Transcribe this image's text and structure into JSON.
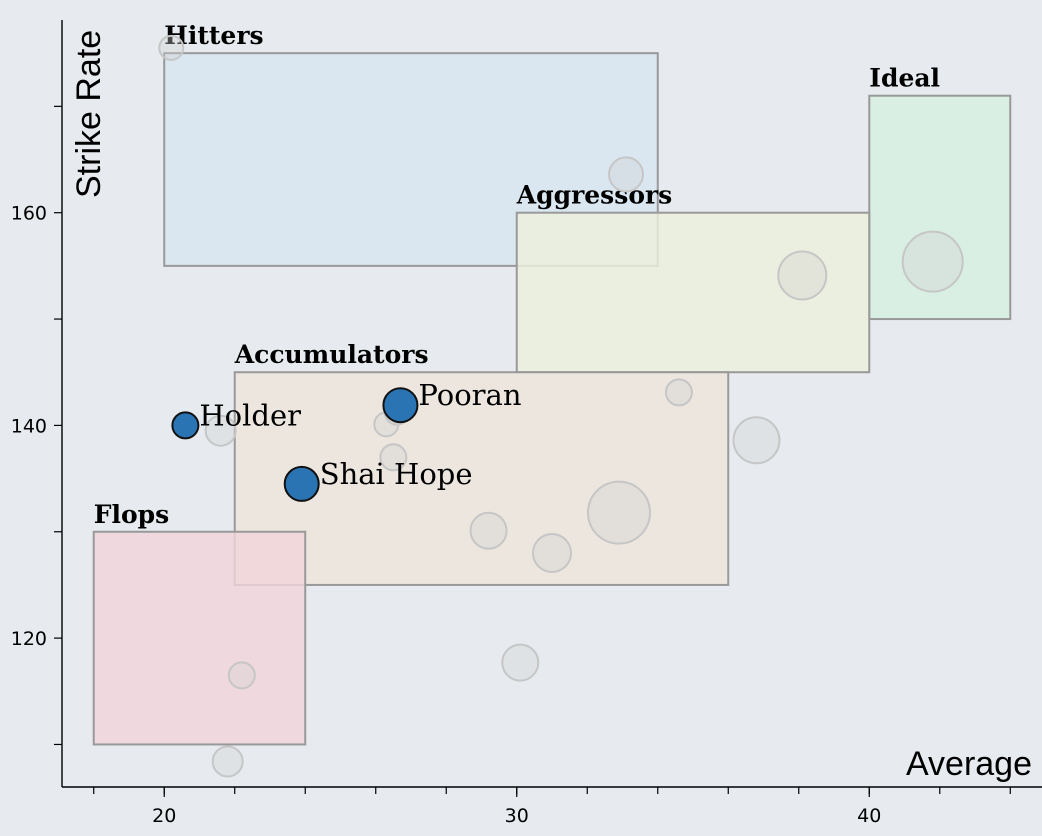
{
  "chart_data": {
    "type": "scatter",
    "title": "",
    "xlabel": "Average",
    "ylabel": "Strike Rate",
    "xlim": [
      17.1,
      44.9
    ],
    "ylim": [
      106,
      180
    ],
    "x_ticks": [
      20,
      30,
      40
    ],
    "y_ticks": [
      120,
      140,
      160
    ],
    "grid": false,
    "colors": {
      "background": "#e7ebef",
      "highlight": "#2a74b4",
      "bubble": "#d2d2d2"
    },
    "zones": [
      {
        "name": "Hitters",
        "x": [
          20,
          34
        ],
        "y": [
          155,
          175
        ],
        "color": "#d7e5f2"
      },
      {
        "name": "Ideal",
        "x": [
          40,
          44
        ],
        "y": [
          150,
          171
        ],
        "color": "#d6efe0"
      },
      {
        "name": "Aggressors",
        "x": [
          30,
          40
        ],
        "y": [
          145,
          160
        ],
        "color": "#ecefdc"
      },
      {
        "name": "Accumulators",
        "x": [
          22,
          36
        ],
        "y": [
          125,
          145
        ],
        "color": "#ede4dc"
      },
      {
        "name": "Flops",
        "x": [
          18,
          24
        ],
        "y": [
          110,
          130
        ],
        "color": "#f0d4db"
      }
    ],
    "highlighted": [
      {
        "name": "Holder",
        "x": 20.6,
        "y": 140,
        "r": 13
      },
      {
        "name": "Pooran",
        "x": 26.7,
        "y": 141.9,
        "r": 17
      },
      {
        "name": "Shai Hope",
        "x": 23.9,
        "y": 134.5,
        "r": 17
      }
    ],
    "points": [
      {
        "x": 20.2,
        "y": 175.5,
        "r": 12
      },
      {
        "x": 33.1,
        "y": 163.6,
        "r": 17
      },
      {
        "x": 38.1,
        "y": 154.1,
        "r": 24
      },
      {
        "x": 41.8,
        "y": 155.4,
        "r": 30
      },
      {
        "x": 34.6,
        "y": 143.1,
        "r": 13
      },
      {
        "x": 36.8,
        "y": 138.6,
        "r": 23
      },
      {
        "x": 21.6,
        "y": 139.5,
        "r": 15
      },
      {
        "x": 26.3,
        "y": 140.1,
        "r": 12
      },
      {
        "x": 26.6,
        "y": 141.2,
        "r": 12
      },
      {
        "x": 26.5,
        "y": 137.0,
        "r": 13
      },
      {
        "x": 32.9,
        "y": 131.8,
        "r": 31
      },
      {
        "x": 29.2,
        "y": 130.1,
        "r": 18
      },
      {
        "x": 31.0,
        "y": 128.0,
        "r": 19
      },
      {
        "x": 30.1,
        "y": 117.7,
        "r": 18
      },
      {
        "x": 22.2,
        "y": 116.5,
        "r": 13
      },
      {
        "x": 21.8,
        "y": 108.4,
        "r": 15
      }
    ]
  }
}
